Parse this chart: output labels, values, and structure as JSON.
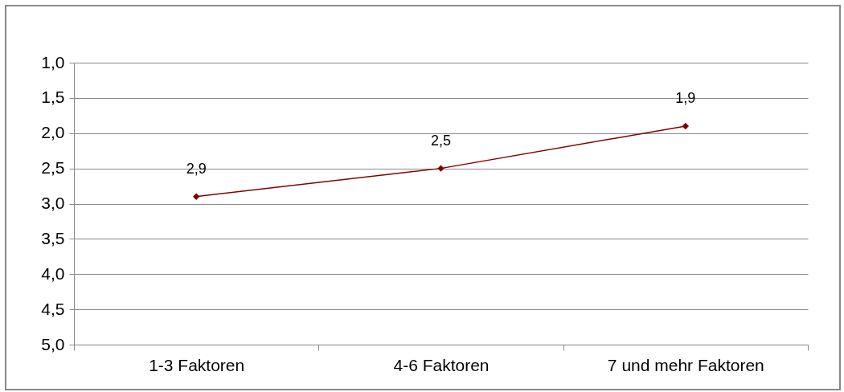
{
  "chart_data": {
    "type": "line",
    "categories": [
      "1-3 Faktoren",
      "4-6 Faktoren",
      "7 und mehr Faktoren"
    ],
    "series": [
      {
        "color": "#800000",
        "values": [
          2.9,
          2.5,
          1.9
        ],
        "value_labels": [
          "2,9",
          "2,5",
          "1,9"
        ]
      }
    ],
    "ylim": [
      5,
      1
    ],
    "yticks": [
      {
        "value": 1,
        "label": "1,0"
      },
      {
        "value": 1.5,
        "label": "1,5"
      },
      {
        "value": 2,
        "label": "2,0"
      },
      {
        "value": 2.5,
        "label": "2,5"
      },
      {
        "value": 3,
        "label": "3,0"
      },
      {
        "value": 3.5,
        "label": "3,5"
      },
      {
        "value": 4,
        "label": "4,0"
      },
      {
        "value": 4.5,
        "label": "4,5"
      },
      {
        "value": 5,
        "label": "5,0"
      }
    ],
    "grid": "y",
    "marker": "diamond",
    "line_style": "solid",
    "legend": false
  }
}
